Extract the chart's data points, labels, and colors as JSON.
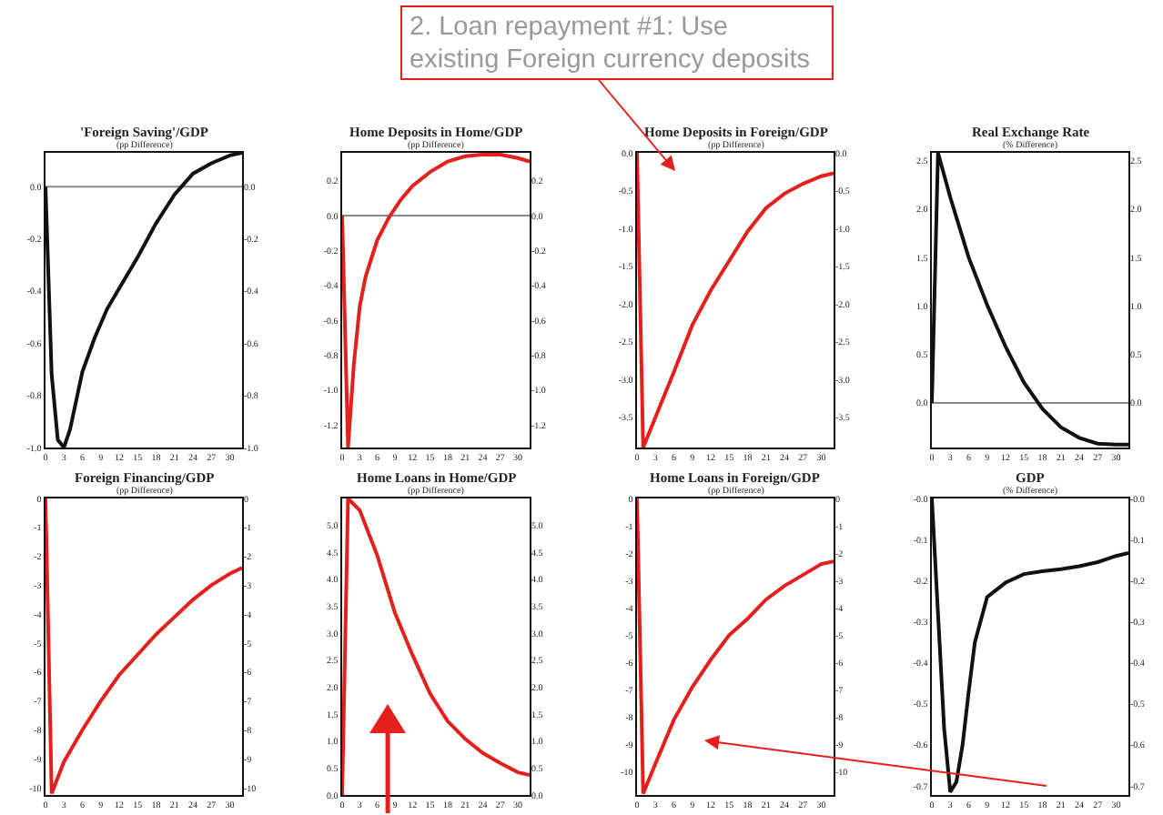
{
  "chart_data": [
    {
      "type": "line",
      "title": "'Foreign Saving'/GDP",
      "subtitle": "(pp Difference)",
      "x": [
        0,
        1,
        2,
        3,
        4,
        5,
        6,
        8,
        10,
        12,
        15,
        18,
        21,
        24,
        27,
        30,
        32
      ],
      "series": [
        {
          "color": "#111111",
          "values": [
            0,
            -0.72,
            -0.97,
            -1.0,
            -0.93,
            -0.82,
            -0.71,
            -0.58,
            -0.47,
            -0.39,
            -0.27,
            -0.14,
            -0.03,
            0.05,
            0.09,
            0.12,
            0.13
          ]
        }
      ],
      "xlim": [
        0,
        32
      ],
      "xticks": [
        0,
        3,
        6,
        9,
        12,
        15,
        18,
        21,
        24,
        27,
        30
      ],
      "ylim": [
        -1.0,
        0.13
      ],
      "yticks": [
        {
          "value": 0,
          "label": "0.0"
        },
        -0.2,
        -0.4,
        -0.6,
        -0.8,
        {
          "value": -1,
          "label": "-1.0"
        }
      ],
      "y2lim": [
        -1.0,
        0.13
      ],
      "y2ticks": [
        {
          "value": 0,
          "label": "0.0"
        },
        -0.2,
        -0.4,
        -0.6,
        -0.8,
        {
          "value": -1,
          "label": "-1.0"
        }
      ],
      "ref_lines": [
        {
          "axis": "y",
          "value": 0,
          "color": "#888888"
        }
      ],
      "line_style": "solid"
    },
    {
      "type": "line",
      "title": "Home Deposits in Home/GDP",
      "subtitle": "(pp Difference)",
      "x": [
        0,
        1,
        2,
        3,
        4,
        6,
        8,
        10,
        12,
        15,
        18,
        21,
        24,
        27,
        30,
        32
      ],
      "series": [
        {
          "color": "#e3201b",
          "values": [
            0,
            -1.33,
            -0.85,
            -0.52,
            -0.35,
            -0.14,
            -0.01,
            0.09,
            0.17,
            0.25,
            0.31,
            0.34,
            0.35,
            0.35,
            0.33,
            0.31
          ]
        }
      ],
      "xlim": [
        0,
        32
      ],
      "xticks": [
        0,
        3,
        6,
        9,
        12,
        15,
        18,
        21,
        24,
        27,
        30
      ],
      "ylim": [
        -1.33,
        0.36
      ],
      "yticks": [
        0.2,
        {
          "value": 0,
          "label": "0.0"
        },
        -0.2,
        -0.4,
        -0.6,
        -0.8,
        {
          "value": -1,
          "label": "-1.0"
        },
        -1.2
      ],
      "y2lim": [
        -1.33,
        0.36
      ],
      "y2ticks": [
        0.2,
        {
          "value": 0,
          "label": "0.0"
        },
        -0.2,
        -0.4,
        -0.6,
        -0.8,
        {
          "value": -1,
          "label": "-1.0"
        },
        -1.2
      ],
      "ref_lines": [
        {
          "axis": "y",
          "value": 0,
          "color": "#888888"
        }
      ],
      "line_style": "solid"
    },
    {
      "type": "line",
      "title": "Home Deposits in Foreign/GDP",
      "subtitle": "(pp Difference)",
      "x": [
        0,
        1,
        3,
        6,
        9,
        12,
        15,
        18,
        21,
        24,
        27,
        30,
        32
      ],
      "series": [
        {
          "color": "#e3201b",
          "values": [
            0,
            -3.9,
            -3.5,
            -2.9,
            -2.28,
            -1.82,
            -1.43,
            -1.04,
            -0.73,
            -0.54,
            -0.41,
            -0.31,
            -0.27
          ]
        }
      ],
      "xlim": [
        0,
        32
      ],
      "xticks": [
        0,
        3,
        6,
        9,
        12,
        15,
        18,
        21,
        24,
        27,
        30
      ],
      "ylim": [
        -3.9,
        0
      ],
      "yticks": [
        {
          "value": 0,
          "label": "0.0"
        },
        -0.5,
        {
          "value": -1,
          "label": "-1.0"
        },
        -1.5,
        {
          "value": -2,
          "label": "-2.0"
        },
        -2.5,
        {
          "value": -3,
          "label": "-3.0"
        },
        -3.5
      ],
      "y2lim": [
        -3.9,
        0
      ],
      "y2ticks": [
        {
          "value": 0,
          "label": "0.0"
        },
        -0.5,
        {
          "value": -1,
          "label": "-1.0"
        },
        -1.5,
        {
          "value": -2,
          "label": "-2.0"
        },
        -2.5,
        {
          "value": -3,
          "label": "-3.0"
        },
        -3.5
      ],
      "annotations": [
        "2. Loan repayment #1: Use existing Foreign currency deposits"
      ],
      "line_style": "solid"
    },
    {
      "type": "line",
      "title": "Real Exchange Rate",
      "subtitle": "(% Difference)",
      "x": [
        0,
        1,
        3,
        6,
        9,
        12,
        15,
        18,
        21,
        24,
        27,
        30,
        32
      ],
      "series": [
        {
          "color": "#111111",
          "values": [
            0,
            2.58,
            2.12,
            1.5,
            1.01,
            0.58,
            0.21,
            -0.06,
            -0.25,
            -0.36,
            -0.42,
            -0.43,
            -0.43
          ]
        }
      ],
      "xlim": [
        0,
        32
      ],
      "xticks": [
        0,
        3,
        6,
        9,
        12,
        15,
        18,
        21,
        24,
        27,
        30
      ],
      "ylim": [
        -0.46,
        2.58
      ],
      "yticks": [
        {
          "value": 0,
          "label": "0.0"
        },
        0.5,
        {
          "value": 1,
          "label": "1.0"
        },
        1.5,
        {
          "value": 2,
          "label": "2.0"
        },
        2.5
      ],
      "y2lim": [
        -0.46,
        2.58
      ],
      "y2ticks": [
        {
          "value": 0,
          "label": "0.0"
        },
        0.5,
        {
          "value": 1,
          "label": "1.0"
        },
        1.5,
        {
          "value": 2,
          "label": "2.0"
        },
        2.5
      ],
      "ref_lines": [
        {
          "axis": "y",
          "value": 0,
          "color": "#888888"
        }
      ],
      "line_style": "solid"
    },
    {
      "type": "line",
      "title": "Foreign Financing/GDP",
      "subtitle": "(pp Difference)",
      "x": [
        0,
        1,
        3,
        6,
        9,
        12,
        15,
        18,
        21,
        24,
        27,
        30,
        32
      ],
      "series": [
        {
          "color": "#e3201b",
          "values": [
            0,
            -10.2,
            -9.1,
            -8.0,
            -7.0,
            -6.1,
            -5.4,
            -4.7,
            -4.1,
            -3.5,
            -3.0,
            -2.6,
            -2.4
          ]
        }
      ],
      "xlim": [
        0,
        32
      ],
      "xticks": [
        0,
        3,
        6,
        9,
        12,
        15,
        18,
        21,
        24,
        27,
        30
      ],
      "ylim": [
        -10.25,
        0
      ],
      "yticks": [
        0,
        -1,
        -2,
        -3,
        -4,
        -5,
        -6,
        -7,
        -8,
        -9,
        -10
      ],
      "y2lim": [
        -10.25,
        0
      ],
      "y2ticks": [
        0,
        -1,
        -2,
        -3,
        -4,
        -5,
        -6,
        -7,
        -8,
        -9,
        -10
      ],
      "line_style": "solid"
    },
    {
      "type": "line",
      "title": "Home Loans in Home/GDP",
      "subtitle": "(pp Difference)",
      "x": [
        0,
        1,
        3,
        6,
        9,
        12,
        15,
        18,
        21,
        24,
        27,
        30,
        32
      ],
      "series": [
        {
          "color": "#e3201b",
          "values": [
            0,
            5.5,
            5.28,
            4.44,
            3.38,
            2.6,
            1.88,
            1.37,
            1.04,
            0.78,
            0.59,
            0.42,
            0.37
          ]
        }
      ],
      "xlim": [
        0,
        32
      ],
      "xticks": [
        0,
        3,
        6,
        9,
        12,
        15,
        18,
        21,
        24,
        27,
        30
      ],
      "ylim": [
        0,
        5.5
      ],
      "yticks": [
        {
          "value": 0,
          "label": "0.0"
        },
        0.5,
        {
          "value": 1,
          "label": "1.0"
        },
        1.5,
        {
          "value": 2,
          "label": "2.0"
        },
        2.5,
        {
          "value": 3,
          "label": "3.0"
        },
        3.5,
        {
          "value": 4,
          "label": "4.0"
        },
        4.5,
        {
          "value": 5,
          "label": "5.0"
        }
      ],
      "y2lim": [
        0,
        5.5
      ],
      "y2ticks": [
        {
          "value": 0,
          "label": "0.0"
        },
        0.5,
        {
          "value": 1,
          "label": "1.0"
        },
        1.5,
        {
          "value": 2,
          "label": "2.0"
        },
        2.5,
        {
          "value": 3,
          "label": "3.0"
        },
        3.5,
        {
          "value": 4,
          "label": "4.0"
        },
        4.5,
        {
          "value": 5,
          "label": "5.0"
        }
      ],
      "line_style": "solid"
    },
    {
      "type": "line",
      "title": "Home Loans in Foreign/GDP",
      "subtitle": "(pp Difference)",
      "x": [
        0,
        1,
        3,
        6,
        9,
        12,
        15,
        18,
        21,
        24,
        27,
        30,
        32
      ],
      "series": [
        {
          "color": "#e3201b",
          "values": [
            0,
            -10.8,
            -9.7,
            -8.1,
            -6.9,
            -5.9,
            -5.0,
            -4.4,
            -3.7,
            -3.2,
            -2.8,
            -2.4,
            -2.3
          ]
        }
      ],
      "xlim": [
        0,
        32
      ],
      "xticks": [
        0,
        3,
        6,
        9,
        12,
        15,
        18,
        21,
        24,
        27,
        30
      ],
      "ylim": [
        -10.85,
        0
      ],
      "yticks": [
        0,
        -1,
        -2,
        -3,
        -4,
        -5,
        -6,
        -7,
        -8,
        -9,
        -10
      ],
      "y2lim": [
        -10.85,
        0
      ],
      "y2ticks": [
        0,
        -1,
        -2,
        -3,
        -4,
        -5,
        -6,
        -7,
        -8,
        -9,
        -10
      ],
      "line_style": "solid"
    },
    {
      "type": "line",
      "title": "GDP",
      "subtitle": "(% Difference)",
      "x": [
        0,
        1,
        2,
        3,
        4,
        5,
        6,
        7,
        9,
        12,
        15,
        18,
        21,
        24,
        27,
        30,
        32
      ],
      "series": [
        {
          "color": "#111111",
          "values": [
            0,
            -0.28,
            -0.56,
            -0.715,
            -0.69,
            -0.6,
            -0.47,
            -0.35,
            -0.24,
            -0.205,
            -0.184,
            -0.177,
            -0.172,
            -0.165,
            -0.155,
            -0.14,
            -0.133
          ]
        }
      ],
      "xlim": [
        0,
        32
      ],
      "xticks": [
        0,
        3,
        6,
        9,
        12,
        15,
        18,
        21,
        24,
        27,
        30
      ],
      "ylim": [
        -0.722,
        0
      ],
      "yticks": [
        {
          "value": 0,
          "label": "-0.0"
        },
        -0.1,
        -0.2,
        -0.3,
        -0.4,
        -0.5,
        -0.6,
        -0.7
      ],
      "y2lim": [
        -0.722,
        0
      ],
      "y2ticks": [
        {
          "value": 0,
          "label": "-0.0"
        },
        -0.1,
        -0.2,
        -0.3,
        -0.4,
        -0.5,
        -0.6,
        -0.7
      ],
      "line_style": "solid"
    }
  ]
}
